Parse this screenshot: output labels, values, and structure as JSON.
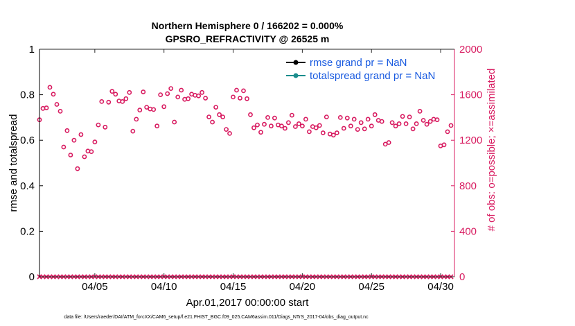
{
  "chart_data": {
    "type": "scatter",
    "title": "Northern Hemisphere 0 / 166202 = 0.000%",
    "subtitle": "GPSRO_REFRACTIVITY @ 26525 m",
    "xlabel": "Apr.01,2017 00:00:00 start",
    "ylabel_left": "rmse and totalspread",
    "ylabel_right": "# of obs: o=possible; ×=assimilated",
    "ylim_left": [
      0,
      1
    ],
    "ylim_right": [
      0,
      2000
    ],
    "xlim": [
      1.0,
      31.0
    ],
    "yticks_left": [
      "0",
      "0.2",
      "0.4",
      "0.6",
      "0.8",
      "1"
    ],
    "yticks_right": [
      "0",
      "400",
      "800",
      "1200",
      "1600",
      "2000"
    ],
    "xticks": [
      {
        "x": 5,
        "label": "04/05"
      },
      {
        "x": 10,
        "label": "04/10"
      },
      {
        "x": 15,
        "label": "04/15"
      },
      {
        "x": 20,
        "label": "04/20"
      },
      {
        "x": 25,
        "label": "04/25"
      },
      {
        "x": 30,
        "label": "04/30"
      }
    ],
    "legend": {
      "position": "top-right",
      "entries": [
        {
          "label": "rmse grand pr = NaN",
          "color": "#000000"
        },
        {
          "label": "totalspread grand pr = NaN",
          "color": "#1a8c8c"
        }
      ]
    },
    "colors": {
      "obs": "#d81b60",
      "axis_left": "#000000",
      "axis_right": "#d81b60",
      "legend_text": "#1a5be0"
    },
    "series": [
      {
        "name": "possible",
        "marker": "o",
        "x": [
          1.0,
          1.25,
          1.5,
          1.75,
          2.0,
          2.25,
          2.5,
          2.75,
          3.0,
          3.25,
          3.5,
          3.75,
          4.0,
          4.25,
          4.5,
          4.75,
          5.0,
          5.25,
          5.5,
          5.75,
          6.0,
          6.25,
          6.5,
          6.75,
          7.0,
          7.25,
          7.5,
          7.75,
          8.0,
          8.25,
          8.5,
          8.75,
          9.0,
          9.25,
          9.5,
          9.75,
          10.0,
          10.25,
          10.5,
          10.75,
          11.0,
          11.25,
          11.5,
          11.75,
          12.0,
          12.25,
          12.5,
          12.75,
          13.0,
          13.25,
          13.5,
          13.75,
          14.0,
          14.25,
          14.5,
          14.75,
          15.0,
          15.25,
          15.5,
          15.75,
          16.0,
          16.25,
          16.5,
          16.75,
          17.0,
          17.25,
          17.5,
          17.75,
          18.0,
          18.25,
          18.5,
          18.75,
          19.0,
          19.25,
          19.5,
          19.75,
          20.0,
          20.25,
          20.5,
          20.75,
          21.0,
          21.25,
          21.5,
          21.75,
          22.0,
          22.25,
          22.5,
          22.75,
          23.0,
          23.25,
          23.5,
          23.75,
          24.0,
          24.25,
          24.5,
          24.75,
          25.0,
          25.25,
          25.5,
          25.75,
          26.0,
          26.25,
          26.5,
          26.75,
          27.0,
          27.25,
          27.5,
          27.75,
          28.0,
          28.25,
          28.5,
          28.75,
          29.0,
          29.25,
          29.5,
          29.75,
          30.0,
          30.25,
          30.5,
          30.75
        ],
        "y": [
          1380,
          1480,
          1485,
          1665,
          1605,
          1515,
          1455,
          1140,
          1285,
          1070,
          1200,
          950,
          1250,
          1055,
          1105,
          1100,
          1185,
          1335,
          1540,
          1315,
          1535,
          1630,
          1605,
          1545,
          1540,
          1565,
          1620,
          1280,
          1385,
          1465,
          1625,
          1490,
          1475,
          1470,
          1325,
          1600,
          1495,
          1610,
          1655,
          1360,
          1580,
          1640,
          1560,
          1565,
          1605,
          1595,
          1590,
          1620,
          1570,
          1405,
          1360,
          1490,
          1425,
          1405,
          1295,
          1260,
          1580,
          1640,
          1570,
          1635,
          1565,
          1425,
          1310,
          1335,
          1270,
          1340,
          1400,
          1325,
          1395,
          1335,
          1325,
          1305,
          1355,
          1420,
          1320,
          1345,
          1325,
          1385,
          1275,
          1320,
          1310,
          1330,
          1265,
          1405,
          1255,
          1245,
          1265,
          1400,
          1305,
          1395,
          1325,
          1385,
          1295,
          1355,
          1300,
          1385,
          1325,
          1425,
          1375,
          1365,
          1165,
          1180,
          1355,
          1325,
          1345,
          1410,
          1345,
          1405,
          1300,
          1345,
          1455,
          1375,
          1340,
          1365,
          1385,
          1380,
          1150,
          1160,
          1275,
          1330
        ]
      },
      {
        "name": "assimilated",
        "marker": "x",
        "x": [
          1.0,
          1.25,
          1.5,
          1.75,
          2.0,
          2.25,
          2.5,
          2.75,
          3.0,
          3.25,
          3.5,
          3.75,
          4.0,
          4.25,
          4.5,
          4.75,
          5.0,
          5.25,
          5.5,
          5.75,
          6.0,
          6.25,
          6.5,
          6.75,
          7.0,
          7.25,
          7.5,
          7.75,
          8.0,
          8.25,
          8.5,
          8.75,
          9.0,
          9.25,
          9.5,
          9.75,
          10.0,
          10.25,
          10.5,
          10.75,
          11.0,
          11.25,
          11.5,
          11.75,
          12.0,
          12.25,
          12.5,
          12.75,
          13.0,
          13.25,
          13.5,
          13.75,
          14.0,
          14.25,
          14.5,
          14.75,
          15.0,
          15.25,
          15.5,
          15.75,
          16.0,
          16.25,
          16.5,
          16.75,
          17.0,
          17.25,
          17.5,
          17.75,
          18.0,
          18.25,
          18.5,
          18.75,
          19.0,
          19.25,
          19.5,
          19.75,
          20.0,
          20.25,
          20.5,
          20.75,
          21.0,
          21.25,
          21.5,
          21.75,
          22.0,
          22.25,
          22.5,
          22.75,
          23.0,
          23.25,
          23.5,
          23.75,
          24.0,
          24.25,
          24.5,
          24.75,
          25.0,
          25.25,
          25.5,
          25.75,
          26.0,
          26.25,
          26.5,
          26.75,
          27.0,
          27.25,
          27.5,
          27.75,
          28.0,
          28.25,
          28.5,
          28.75,
          29.0,
          29.25,
          29.5,
          29.75,
          30.0,
          30.25,
          30.5,
          30.75
        ],
        "y": [
          0,
          0,
          0,
          0,
          0,
          0,
          0,
          0,
          0,
          0,
          0,
          0,
          0,
          0,
          0,
          0,
          0,
          0,
          0,
          0,
          0,
          0,
          0,
          0,
          0,
          0,
          0,
          0,
          0,
          0,
          0,
          0,
          0,
          0,
          0,
          0,
          0,
          0,
          0,
          0,
          0,
          0,
          0,
          0,
          0,
          0,
          0,
          0,
          0,
          0,
          0,
          0,
          0,
          0,
          0,
          0,
          0,
          0,
          0,
          0,
          0,
          0,
          0,
          0,
          0,
          0,
          0,
          0,
          0,
          0,
          0,
          0,
          0,
          0,
          0,
          0,
          0,
          0,
          0,
          0,
          0,
          0,
          0,
          0,
          0,
          0,
          0,
          0,
          0,
          0,
          0,
          0,
          0,
          0,
          0,
          0,
          0,
          0,
          0,
          0,
          0,
          0,
          0,
          0,
          0,
          0,
          0,
          0,
          0,
          0,
          0,
          0,
          0,
          0,
          0,
          0,
          0,
          0,
          0,
          0
        ]
      }
    ]
  },
  "footer": "data file: /Users/raeder/DAI/ATM_forcXX/CAM6_setup/f.e21.FHIST_BGC.f09_025.CAM6assim.011/Diags_NTrS_2017-04/obs_diag_output.nc"
}
